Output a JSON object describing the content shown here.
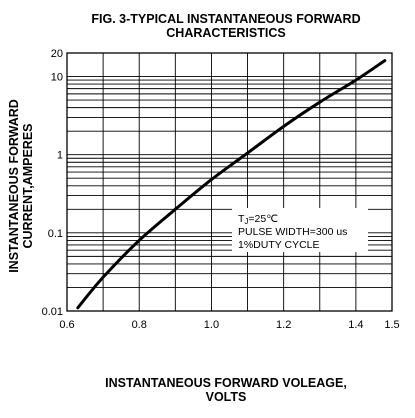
{
  "chart_data": {
    "type": "line",
    "title_line1": "FIG. 3-TYPICAL INSTANTANEOUS FORWARD",
    "title_line2": "CHARACTERISTICS",
    "xlabel_line1": "INSTANTANEOUS FORWARD VOLEAGE,",
    "xlabel_line2": "VOLTS",
    "ylabel_line1": "INSTANTANEOUS FORWARD",
    "ylabel_line2": "CURRENT,AMPERES",
    "x_scale": "linear",
    "y_scale": "log",
    "xlim": [
      0.6,
      1.5
    ],
    "ylim": [
      0.01,
      20
    ],
    "x_ticks": [
      {
        "value": 0.6,
        "label": "0.6"
      },
      {
        "value": 0.8,
        "label": "0.8"
      },
      {
        "value": 1.0,
        "label": "1.0"
      },
      {
        "value": 1.2,
        "label": "1.2"
      },
      {
        "value": 1.4,
        "label": "1.4"
      },
      {
        "value": 1.5,
        "label": "1.5"
      }
    ],
    "y_ticks": [
      {
        "value": 0.01,
        "label": "0.01"
      },
      {
        "value": 0.1,
        "label": "0.1"
      },
      {
        "value": 1,
        "label": "1"
      },
      {
        "value": 10,
        "label": "10"
      },
      {
        "value": 20,
        "label": "20"
      }
    ],
    "grid": true,
    "series": [
      {
        "x": [
          0.63,
          0.7,
          0.8,
          0.9,
          1.0,
          1.1,
          1.2,
          1.3,
          1.4,
          1.48
        ],
        "y": [
          0.011,
          0.027,
          0.08,
          0.2,
          0.48,
          1.05,
          2.3,
          4.7,
          9.0,
          16
        ]
      }
    ],
    "annotation": {
      "line1_main": "T",
      "line1_sub": "J",
      "line1_rest": "=25℃",
      "line2": "PULSE WIDTH=300 us",
      "line3": "1%DUTY CYCLE"
    }
  }
}
